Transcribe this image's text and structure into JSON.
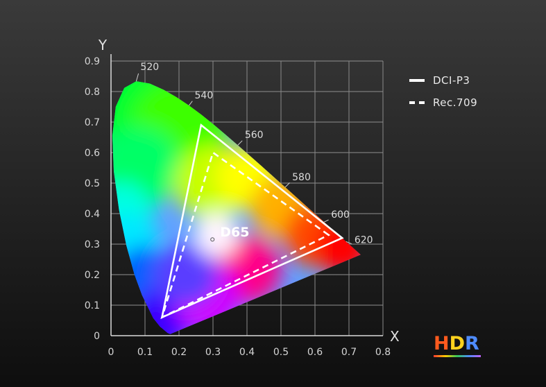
{
  "chart_data": {
    "type": "scatter",
    "title": "",
    "xlabel": "X",
    "ylabel": "Y",
    "xlim": [
      0,
      0.8
    ],
    "ylim": [
      0,
      0.9
    ],
    "x_ticks": [
      "0",
      "0.1",
      "0.2",
      "0.3",
      "0.4",
      "0.5",
      "0.6",
      "0.7",
      "0.8"
    ],
    "y_ticks": [
      "0",
      "0.1",
      "0.2",
      "0.3",
      "0.4",
      "0.5",
      "0.6",
      "0.7",
      "0.8",
      "0.9"
    ],
    "grid": true,
    "spectral_locus": [
      [
        0.1741,
        0.005
      ],
      [
        0.1666,
        0.0089
      ],
      [
        0.144,
        0.0297
      ],
      [
        0.1241,
        0.0578
      ],
      [
        0.0913,
        0.1327
      ],
      [
        0.0687,
        0.2007
      ],
      [
        0.0454,
        0.295
      ],
      [
        0.0235,
        0.4127
      ],
      [
        0.0082,
        0.5384
      ],
      [
        0.0039,
        0.6548
      ],
      [
        0.0139,
        0.7502
      ],
      [
        0.0389,
        0.812
      ],
      [
        0.0743,
        0.8338
      ],
      [
        0.1142,
        0.8262
      ],
      [
        0.1547,
        0.8059
      ],
      [
        0.1929,
        0.7816
      ],
      [
        0.2296,
        0.7543
      ],
      [
        0.2658,
        0.7243
      ],
      [
        0.3016,
        0.6923
      ],
      [
        0.3373,
        0.6589
      ],
      [
        0.3731,
        0.6245
      ],
      [
        0.4087,
        0.5896
      ],
      [
        0.4441,
        0.5547
      ],
      [
        0.4788,
        0.5202
      ],
      [
        0.5125,
        0.4866
      ],
      [
        0.5448,
        0.4544
      ],
      [
        0.5752,
        0.4242
      ],
      [
        0.6029,
        0.3965
      ],
      [
        0.627,
        0.3725
      ],
      [
        0.6482,
        0.3514
      ],
      [
        0.6658,
        0.334
      ],
      [
        0.6801,
        0.3197
      ],
      [
        0.6915,
        0.3083
      ],
      [
        0.7006,
        0.2993
      ],
      [
        0.7347,
        0.2653
      ],
      [
        0.1741,
        0.005
      ]
    ],
    "wavelength_labels": [
      {
        "label": "520",
        "x": 0.0743,
        "y": 0.8338
      },
      {
        "label": "540",
        "x": 0.2296,
        "y": 0.7543
      },
      {
        "label": "560",
        "x": 0.3731,
        "y": 0.6245
      },
      {
        "label": "580",
        "x": 0.5125,
        "y": 0.4866
      },
      {
        "label": "600",
        "x": 0.627,
        "y": 0.3725
      },
      {
        "label": "620",
        "x": 0.6915,
        "y": 0.3083
      }
    ],
    "white_point": {
      "label": "D65",
      "x": 0.3127,
      "y": 0.329
    },
    "series": [
      {
        "name": "DCI-P3",
        "style": "solid",
        "points": [
          [
            0.68,
            0.32
          ],
          [
            0.265,
            0.69
          ],
          [
            0.15,
            0.06
          ]
        ]
      },
      {
        "name": "Rec.709",
        "style": "dashed",
        "points": [
          [
            0.64,
            0.33
          ],
          [
            0.3,
            0.6
          ],
          [
            0.15,
            0.06
          ]
        ]
      }
    ],
    "legend_position": "top-right"
  },
  "badge": {
    "h": "H",
    "d": "D",
    "r": "R"
  }
}
